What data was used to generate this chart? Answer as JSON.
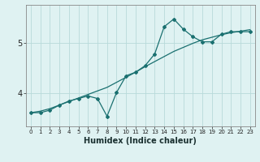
{
  "title": "",
  "xlabel": "Humidex (Indice chaleur)",
  "bg_color": "#dff2f2",
  "grid_color": "#b8dada",
  "line_color": "#1a7070",
  "x_data": [
    0,
    1,
    2,
    3,
    4,
    5,
    6,
    7,
    8,
    9,
    10,
    11,
    12,
    13,
    14,
    15,
    16,
    17,
    18,
    19,
    20,
    21,
    22,
    23
  ],
  "y_curve": [
    3.62,
    3.62,
    3.67,
    3.77,
    3.85,
    3.9,
    3.95,
    3.9,
    3.55,
    4.02,
    4.35,
    4.42,
    4.55,
    4.78,
    5.32,
    5.47,
    5.27,
    5.12,
    5.02,
    5.02,
    5.17,
    5.22,
    5.22,
    5.22
  ],
  "y_line": [
    3.62,
    3.65,
    3.7,
    3.77,
    3.84,
    3.91,
    3.98,
    4.05,
    4.12,
    4.22,
    4.32,
    4.42,
    4.53,
    4.63,
    4.73,
    4.83,
    4.91,
    4.99,
    5.06,
    5.11,
    5.16,
    5.2,
    5.23,
    5.26
  ],
  "yticks": [
    4,
    5
  ],
  "ylim": [
    3.35,
    5.75
  ],
  "xlim": [
    -0.5,
    23.5
  ],
  "xtick_fontsize": 5.0,
  "ytick_fontsize": 7.0,
  "xlabel_fontsize": 7.0
}
